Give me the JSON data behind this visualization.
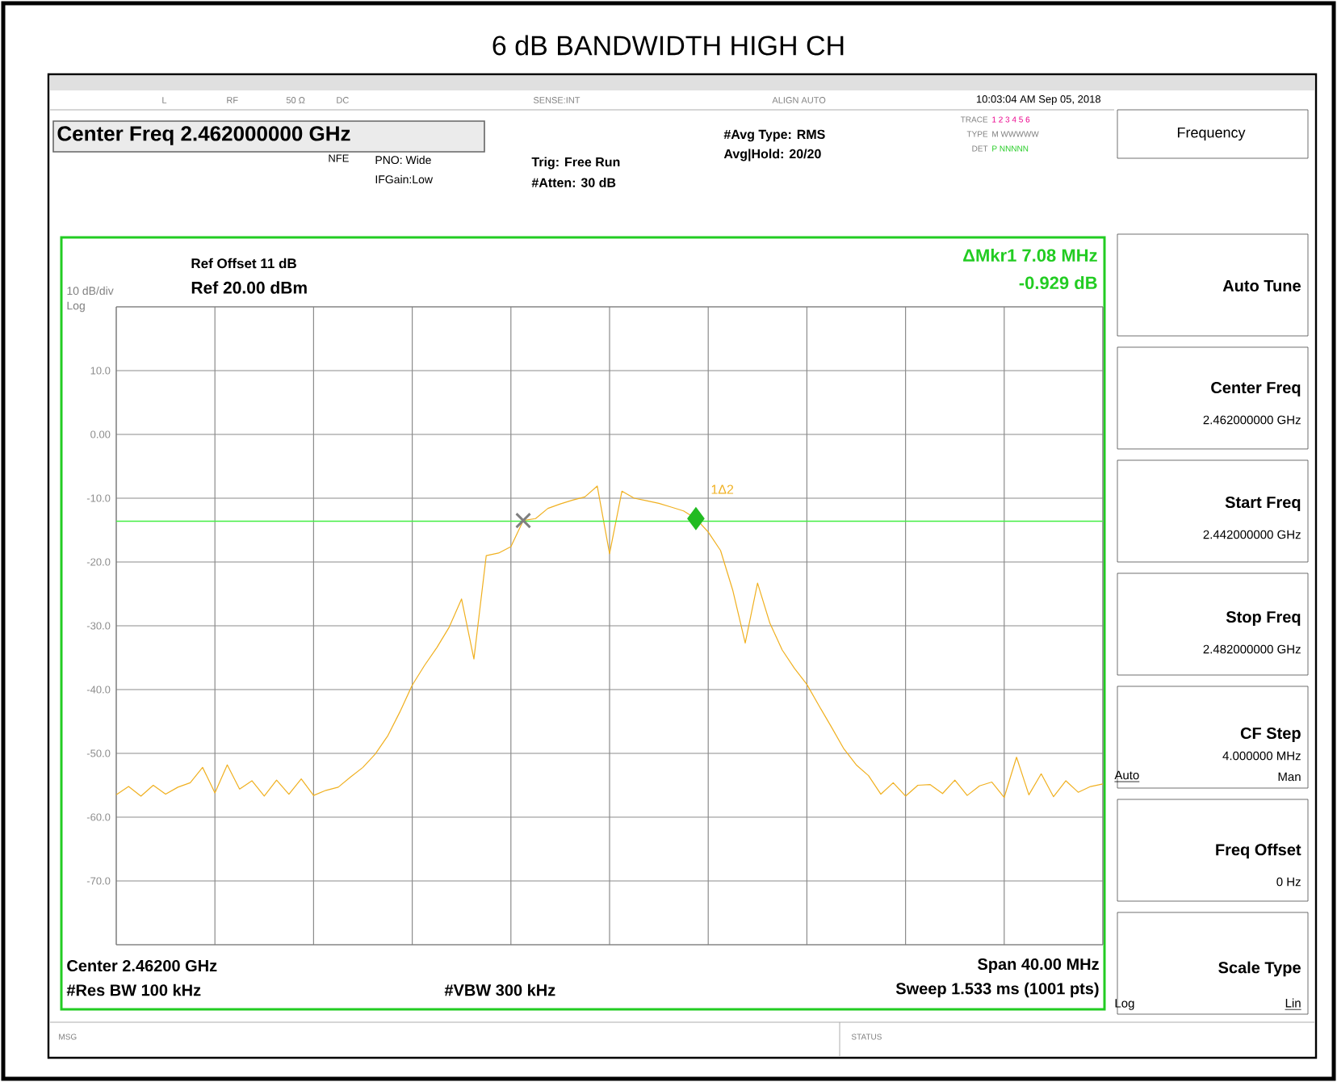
{
  "chart_data": {
    "type": "line",
    "title": "6 dB BANDWIDTH HIGH CH",
    "categories": [
      null,
      null,
      null,
      null,
      null,
      null,
      null,
      null,
      null,
      null,
      null,
      null,
      null,
      null,
      null,
      null,
      null,
      null,
      null,
      null,
      null,
      null,
      null,
      null,
      null,
      null,
      null,
      null,
      null,
      null,
      null,
      null,
      null,
      null,
      null,
      null,
      null,
      null,
      null,
      null,
      null,
      null,
      null,
      null,
      null,
      null,
      null,
      null,
      null,
      null,
      null,
      null,
      null,
      null,
      null,
      null,
      null,
      null,
      null,
      null,
      null,
      null,
      null,
      null,
      null,
      null,
      null,
      null,
      null,
      null,
      null,
      null,
      null,
      null,
      null,
      null,
      null,
      null,
      null,
      null,
      null
    ],
    "ylim": [
      -80,
      20
    ],
    "yticks": [
      {
        "value": 20,
        "label": null
      },
      {
        "value": 10,
        "label": "10.0"
      },
      {
        "value": 0,
        "label": "0.00"
      },
      {
        "value": -10,
        "label": "-10.0"
      },
      {
        "value": -20,
        "label": "-20.0"
      },
      {
        "value": -30,
        "label": "-30.0"
      },
      {
        "value": -40,
        "label": "-40.0"
      },
      {
        "value": -50,
        "label": "-50.0"
      },
      {
        "value": -60,
        "label": "-60.0"
      },
      {
        "value": -70,
        "label": "-70.0"
      },
      {
        "value": -80,
        "label": null
      }
    ],
    "grid": true,
    "series": [
      {
        "color": "#f0b020",
        "values": [
          -56.5,
          -55.2,
          -56.7,
          -55.0,
          -56.4,
          -55.3,
          -54.6,
          -52.2,
          -56.2,
          -51.8,
          -55.6,
          -54.3,
          -56.7,
          -54.2,
          -56.4,
          -54.0,
          -56.6,
          -55.8,
          -55.3,
          -53.7,
          -52.2,
          -50.1,
          -47.3,
          -43.5,
          -39.3,
          -36.2,
          -33.4,
          -30.2,
          -25.8,
          -35.2,
          -19.0,
          -18.6,
          -17.6,
          -13.5,
          -13.2,
          -11.6,
          -10.9,
          -10.3,
          -9.8,
          -8.1,
          -18.7,
          -8.9,
          -10.0,
          -10.4,
          -10.8,
          -11.4,
          -12.0,
          -13.2,
          -15.3,
          -18.2,
          -24.5,
          -32.7,
          -23.3,
          -29.6,
          -33.8,
          -36.7,
          -39.2,
          -42.6,
          -45.9,
          -49.3,
          -51.8,
          -53.5,
          -56.4,
          -54.6,
          -56.7,
          -55.0,
          -54.9,
          -56.3,
          -54.2,
          -56.6,
          -55.1,
          -54.5,
          -56.9,
          -50.6,
          -56.5,
          -53.2,
          -56.8,
          -54.3,
          -56.1,
          -55.2,
          -54.8
        ]
      },
      {
        "type": "scatter",
        "marker": "cross",
        "color": "#808080",
        "values": [
          null,
          null,
          null,
          null,
          null,
          null,
          null,
          null,
          null,
          null,
          null,
          null,
          null,
          null,
          null,
          null,
          null,
          null,
          null,
          null,
          null,
          null,
          null,
          null,
          null,
          null,
          null,
          null,
          null,
          null,
          null,
          null,
          null,
          -13.5,
          null,
          null,
          null,
          null,
          null,
          null,
          null,
          null,
          null,
          null,
          null,
          null,
          null,
          null,
          null,
          null,
          null,
          null,
          null,
          null,
          null,
          null,
          null,
          null,
          null,
          null,
          null,
          null,
          null,
          null,
          null,
          null,
          null,
          null,
          null,
          null,
          null,
          null,
          null,
          null,
          null,
          null,
          null,
          null,
          null,
          null,
          null
        ]
      },
      {
        "type": "scatter",
        "marker": "diamond",
        "color": "#22bb22",
        "values": [
          null,
          null,
          null,
          null,
          null,
          null,
          null,
          null,
          null,
          null,
          null,
          null,
          null,
          null,
          null,
          null,
          null,
          null,
          null,
          null,
          null,
          null,
          null,
          null,
          null,
          null,
          null,
          null,
          null,
          null,
          null,
          null,
          null,
          null,
          null,
          null,
          null,
          null,
          null,
          null,
          null,
          null,
          null,
          null,
          null,
          null,
          null,
          -13.2,
          null,
          null,
          null,
          null,
          null,
          null,
          null,
          null,
          null,
          null,
          null,
          null,
          null,
          null,
          null,
          null,
          null,
          null,
          null,
          null,
          null,
          null,
          null,
          null,
          null,
          null,
          null,
          null,
          null,
          null,
          null,
          null,
          null
        ]
      }
    ],
    "ref_lines": [
      {
        "axis": "y",
        "value": -13.6,
        "color": "#44ee44"
      }
    ],
    "annotations": [
      "1Δ2",
      "Center Freq 2.462000000 GHz",
      "NFE",
      "PNO: Wide",
      "IFGain:Low",
      "Trig: Free Run",
      "#Atten: 30 dB",
      "#Avg Type: RMS",
      "Avg|Hold: 20/20",
      "10:03:04 AM Sep 05, 2018",
      "Frequency",
      "Ref Offset 11 dB",
      "Ref 20.00 dBm",
      "10 dB/div",
      "Log",
      "ΔMkr1 7.08 MHz",
      "-0.929 dB",
      "Center 2.46200 GHz",
      "#Res BW 100 kHz",
      "#VBW 300 kHz",
      "Span 40.00 MHz",
      "Sweep  1.533 ms (1001 pts)",
      "Auto Tune",
      "Center Freq",
      "2.462000000 GHz",
      "Start Freq",
      "2.442000000 GHz",
      "Stop Freq",
      "2.482000000 GHz",
      "CF Step",
      "4.000000 MHz",
      "Auto",
      "Man",
      "Freq Offset",
      "0 Hz",
      "Scale Type",
      "Log",
      "Lin",
      "MSG",
      "STATUS",
      "L",
      "RF",
      "50 Ω",
      "DC",
      "SENSE:INT",
      "ALIGN AUTO",
      "TRACE",
      "TYPE",
      "DET",
      "1 2 3 4 5 6",
      "M WWWWW",
      "P NNNNN"
    ]
  }
}
